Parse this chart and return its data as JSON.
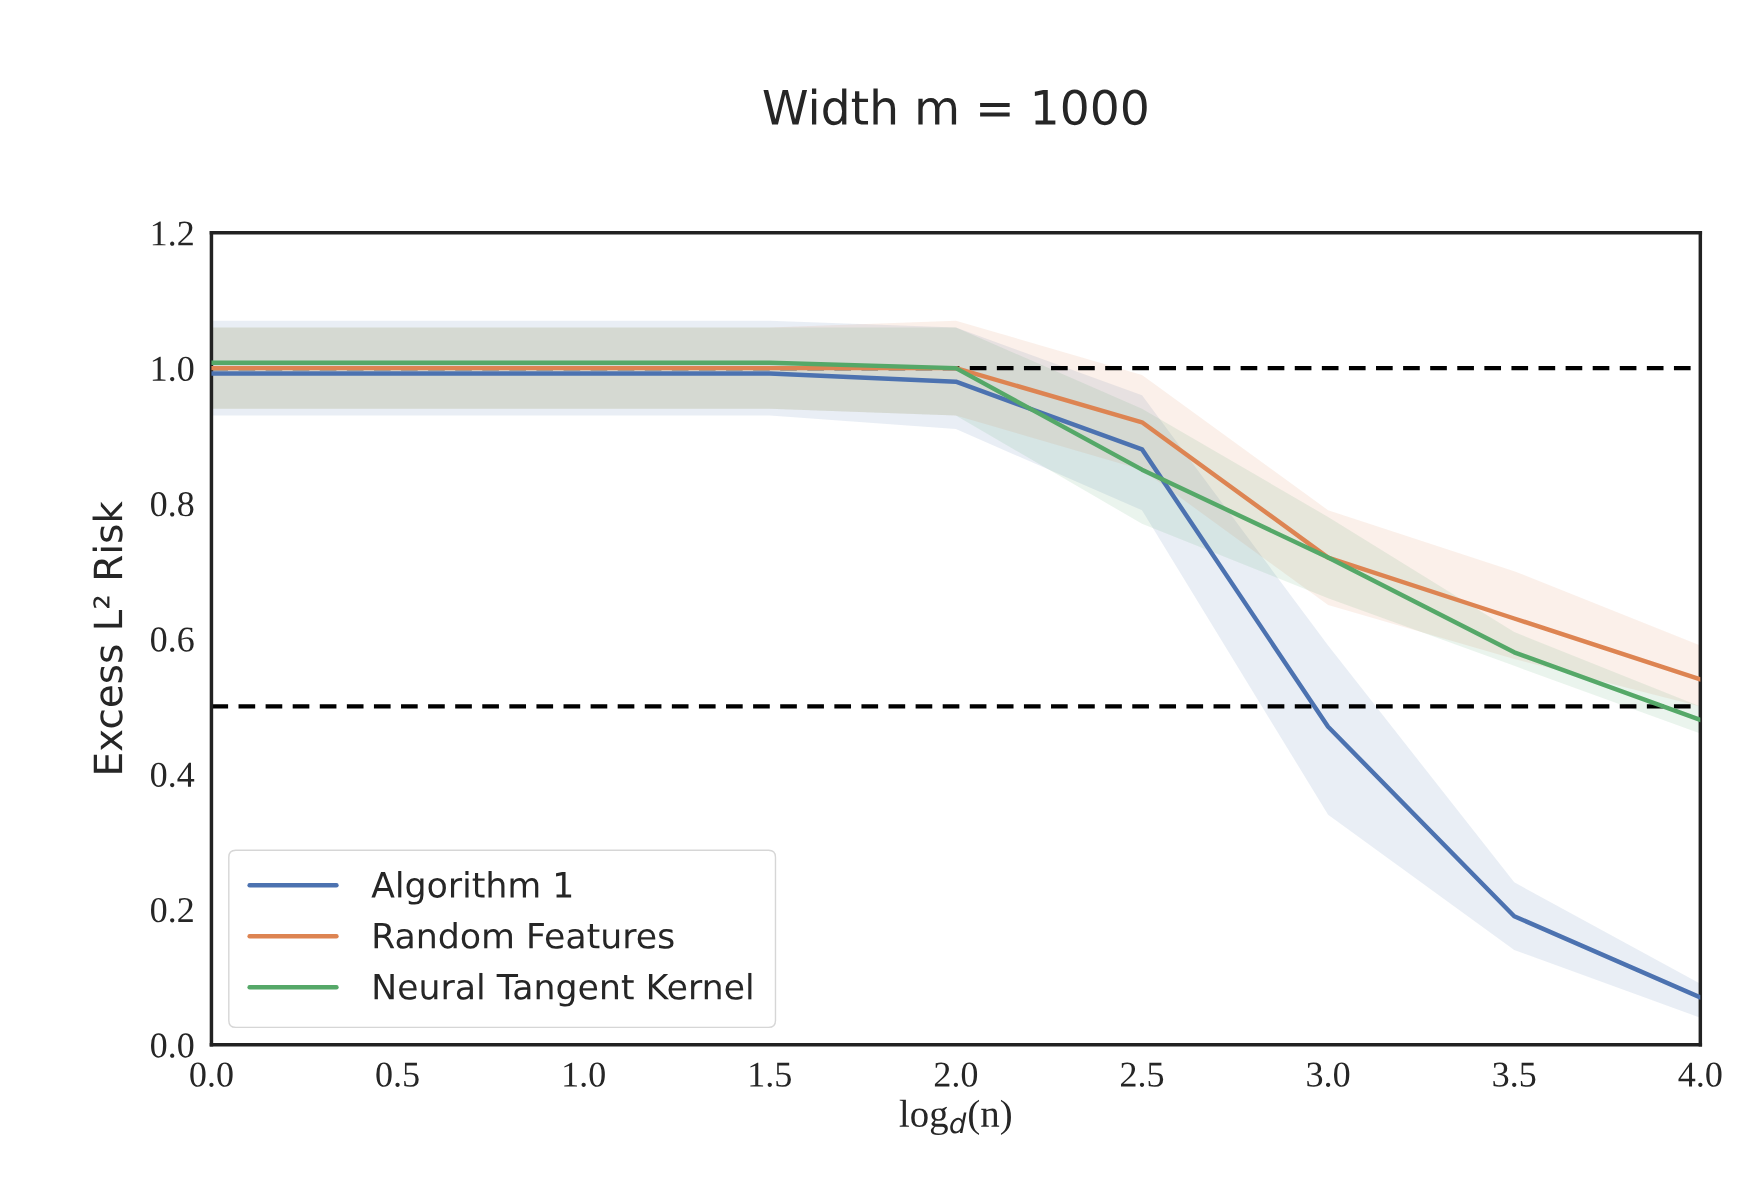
{
  "chart_data": {
    "type": "line",
    "title": "Width m = 1000",
    "xlabel": "log$_{d}$(n)",
    "ylabel": "Excess L² Risk",
    "x": [
      0,
      0.5,
      1.0,
      1.5,
      2.0,
      2.5,
      3.0,
      3.5,
      4.0
    ],
    "xlim": [
      0,
      4
    ],
    "xticks": [
      {
        "value": 0,
        "label": "0.0"
      },
      {
        "value": 0.5,
        "label": "0.5"
      },
      {
        "value": 1,
        "label": "1.0"
      },
      {
        "value": 1.5,
        "label": "1.5"
      },
      {
        "value": 2,
        "label": "2.0"
      },
      {
        "value": 2.5,
        "label": "2.5"
      },
      {
        "value": 3,
        "label": "3.0"
      },
      {
        "value": 3.5,
        "label": "3.5"
      },
      {
        "value": 4,
        "label": "4.0"
      }
    ],
    "ylim": [
      0,
      1.2
    ],
    "yticks": [
      {
        "value": 0,
        "label": "0.0"
      },
      {
        "value": 0.2,
        "label": "0.2"
      },
      {
        "value": 0.4,
        "label": "0.4"
      },
      {
        "value": 0.6,
        "label": "0.6"
      },
      {
        "value": 0.8,
        "label": "0.8"
      },
      {
        "value": 1,
        "label": "1.0"
      },
      {
        "value": 1.2,
        "label": "1.2"
      }
    ],
    "series": [
      {
        "name": "Algorithm 1",
        "color": "#4c72b0",
        "values": [
          0.992,
          0.992,
          0.992,
          0.992,
          0.98,
          0.88,
          0.47,
          0.19,
          0.07
        ],
        "lower": [
          0.93,
          0.93,
          0.93,
          0.93,
          0.91,
          0.79,
          0.34,
          0.14,
          0.04
        ],
        "upper": [
          1.07,
          1.07,
          1.07,
          1.07,
          1.06,
          0.96,
          0.59,
          0.24,
          0.09
        ]
      },
      {
        "name": "Random Features",
        "color": "#dd8452",
        "values": [
          1.0,
          1.0,
          1.0,
          1.0,
          1.0,
          0.92,
          0.72,
          0.63,
          0.54
        ],
        "lower": [
          0.94,
          0.94,
          0.94,
          0.94,
          0.93,
          0.85,
          0.65,
          0.57,
          0.5
        ],
        "upper": [
          1.06,
          1.06,
          1.06,
          1.06,
          1.07,
          0.99,
          0.79,
          0.7,
          0.59
        ]
      },
      {
        "name": "Neural Tangent Kernel",
        "color": "#55a868",
        "values": [
          1.008,
          1.008,
          1.008,
          1.008,
          1.0,
          0.85,
          0.72,
          0.58,
          0.48
        ],
        "lower": [
          0.94,
          0.94,
          0.94,
          0.94,
          0.93,
          0.77,
          0.66,
          0.56,
          0.46
        ],
        "upper": [
          1.06,
          1.06,
          1.06,
          1.06,
          1.06,
          0.94,
          0.78,
          0.61,
          0.5
        ]
      }
    ],
    "ref_lines": [
      {
        "axis": "y",
        "value": 1.0,
        "color": "#000000",
        "line_style": "dashed"
      },
      {
        "axis": "y",
        "value": 0.5,
        "color": "#000000",
        "line_style": "dashed"
      }
    ],
    "grid": false,
    "legend": "bottom left",
    "line_style": "solid",
    "marker": "none"
  }
}
